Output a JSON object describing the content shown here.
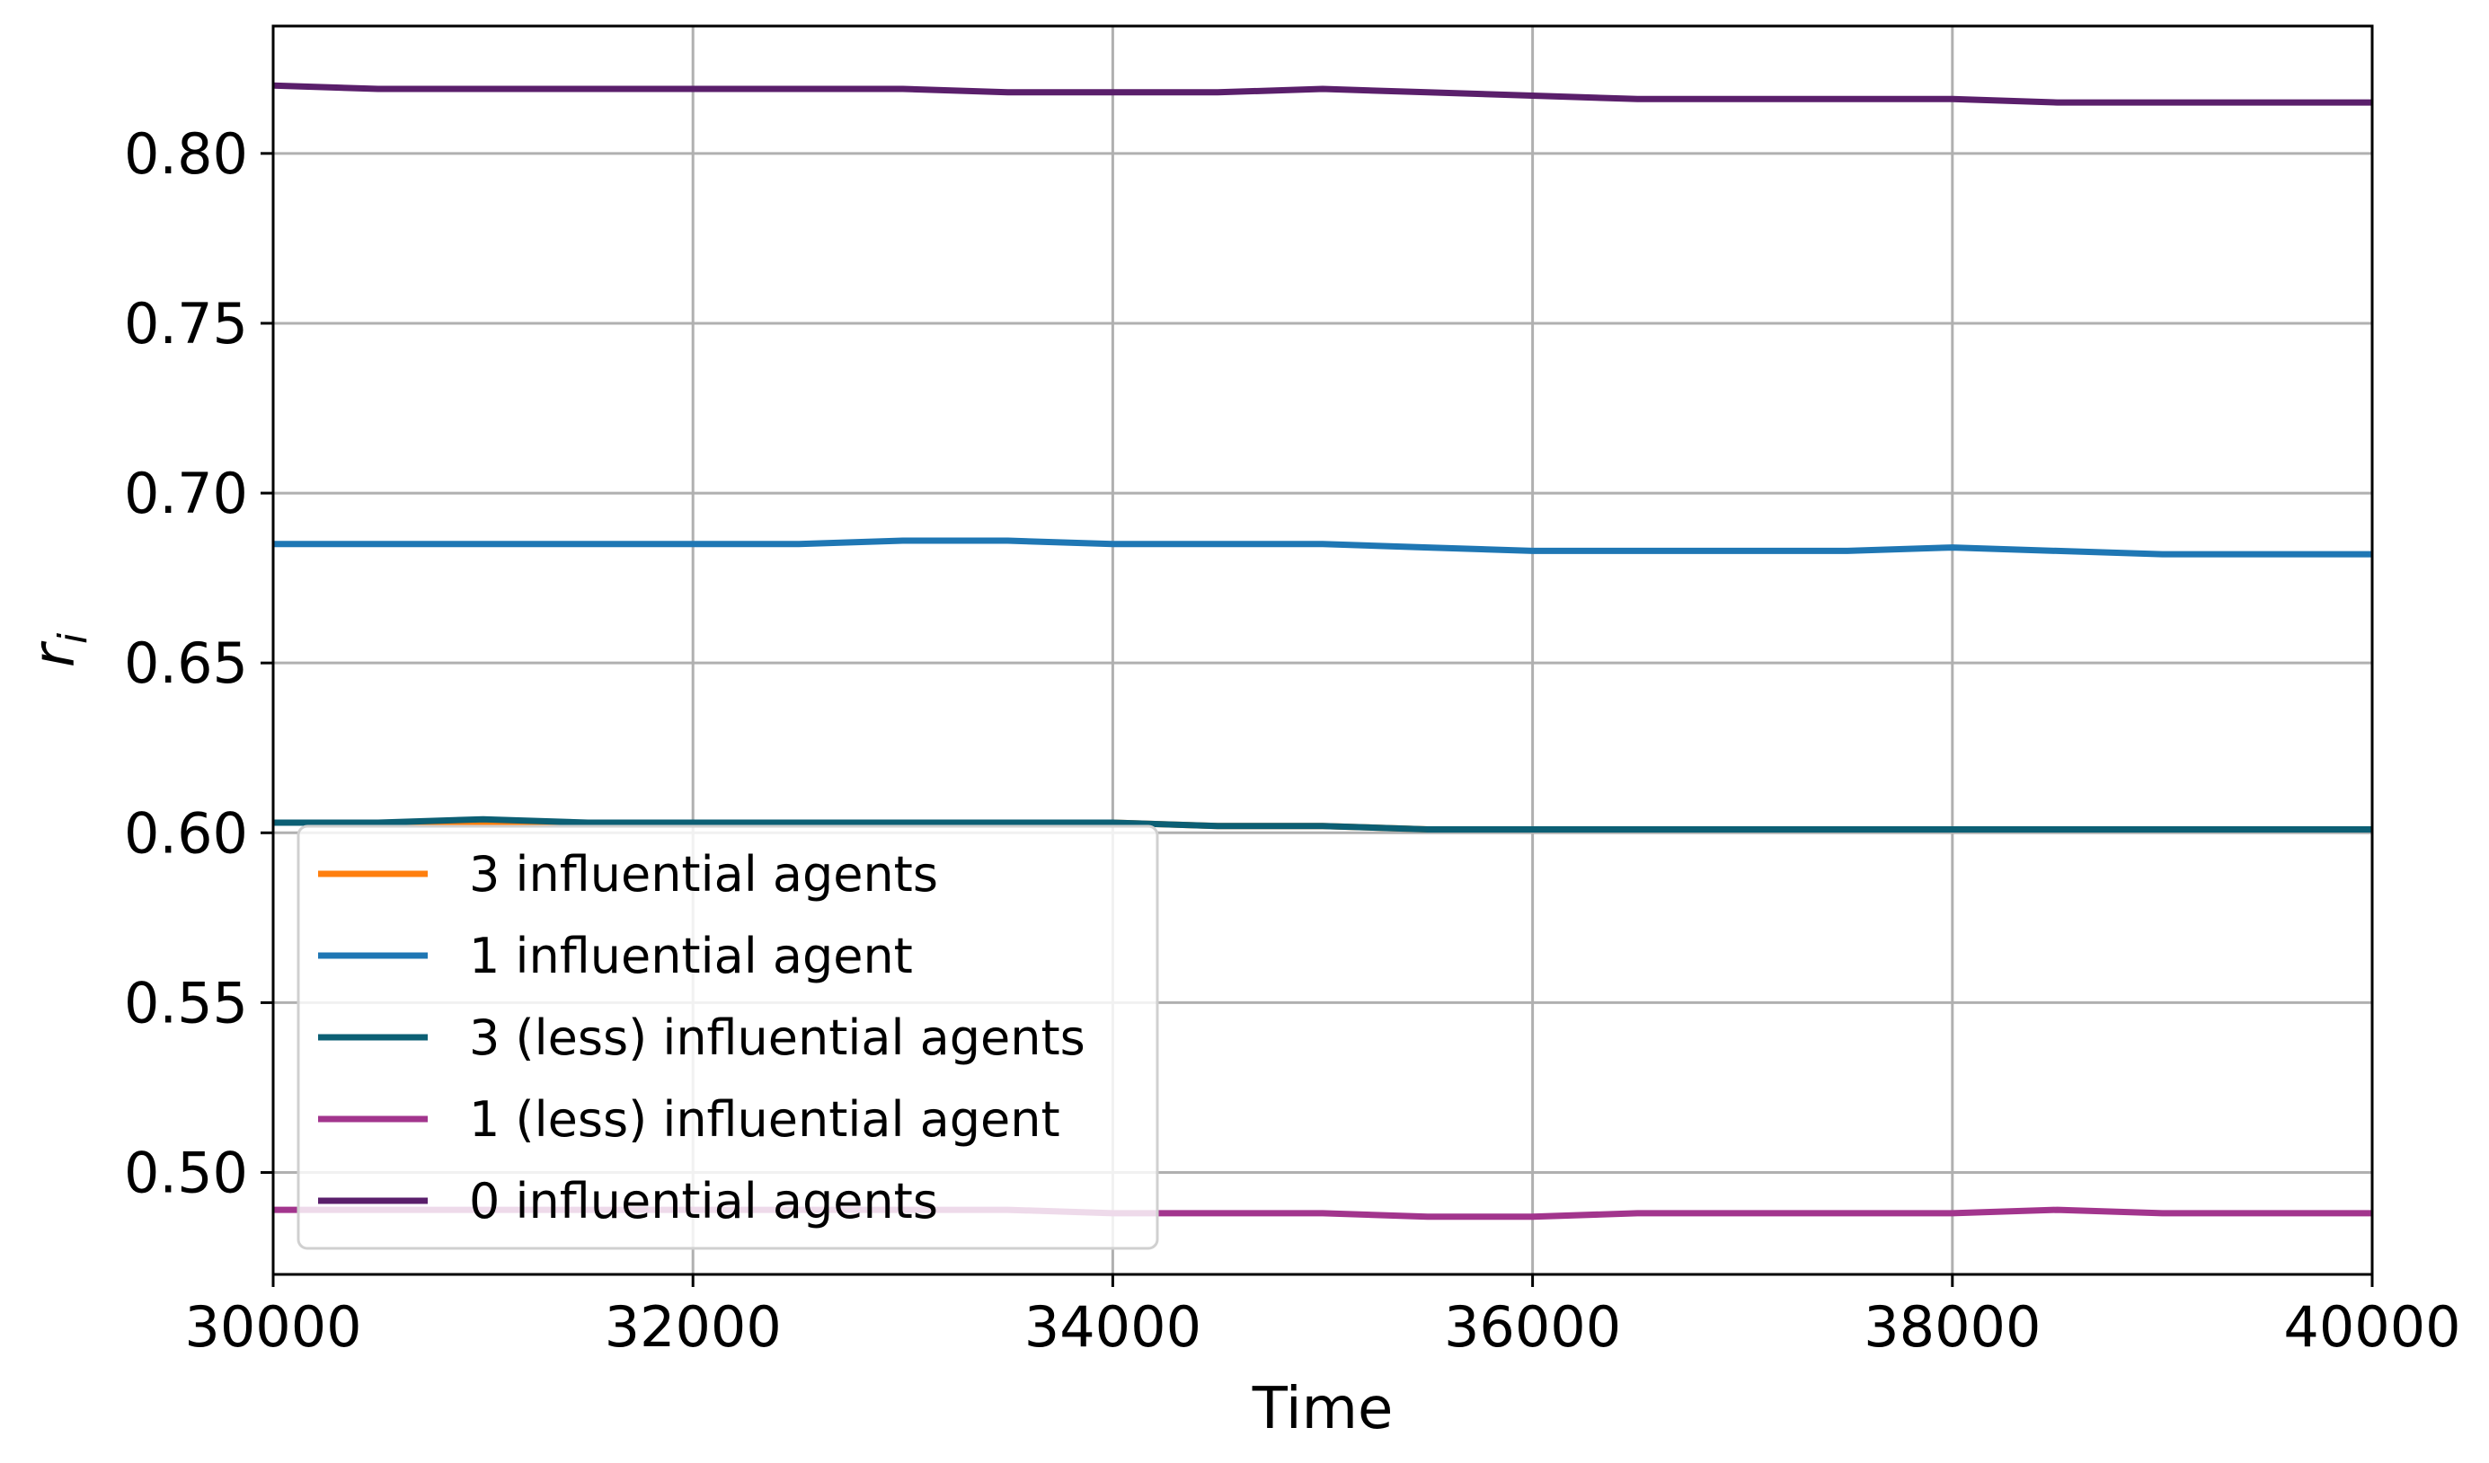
{
  "chart_data": {
    "type": "line",
    "title": "",
    "xlabel": "Time",
    "ylabel": "r_i",
    "xlim": [
      30000,
      40000
    ],
    "ylim": [
      0.47,
      0.8375
    ],
    "xticks": [
      30000,
      32000,
      34000,
      36000,
      38000,
      40000
    ],
    "yticks": [
      0.5,
      0.55,
      0.6,
      0.65,
      0.7,
      0.75,
      0.8
    ],
    "xtick_labels": [
      "30000",
      "32000",
      "34000",
      "36000",
      "38000",
      "40000"
    ],
    "ytick_labels": [
      "0.50",
      "0.55",
      "0.60",
      "0.65",
      "0.70",
      "0.75",
      "0.80"
    ],
    "grid": true,
    "legend_position": "lower-left",
    "x": [
      30000,
      30500,
      31000,
      31500,
      32000,
      32500,
      33000,
      33500,
      34000,
      34500,
      35000,
      35500,
      36000,
      36500,
      37000,
      37500,
      38000,
      38500,
      39000,
      39500,
      40000
    ],
    "series": [
      {
        "name": "3 influential agents",
        "color": "#ff7f0e",
        "values": [
          0.603,
          0.603,
          0.603,
          0.603,
          0.603,
          0.603,
          0.603,
          0.603,
          0.603,
          0.602,
          0.602,
          0.601,
          0.601,
          0.601,
          0.601,
          0.601,
          0.601,
          0.601,
          0.601,
          0.601,
          0.601
        ]
      },
      {
        "name": "1 influential agent",
        "color": "#1f77b4",
        "values": [
          0.685,
          0.685,
          0.685,
          0.685,
          0.685,
          0.685,
          0.686,
          0.686,
          0.685,
          0.685,
          0.685,
          0.684,
          0.683,
          0.683,
          0.683,
          0.683,
          0.684,
          0.683,
          0.682,
          0.682,
          0.682
        ]
      },
      {
        "name": "3 (less) influential agents",
        "color": "#0c5f74",
        "values": [
          0.603,
          0.603,
          0.604,
          0.603,
          0.603,
          0.603,
          0.603,
          0.603,
          0.603,
          0.602,
          0.602,
          0.601,
          0.601,
          0.601,
          0.601,
          0.601,
          0.601,
          0.601,
          0.601,
          0.601,
          0.601
        ]
      },
      {
        "name": "1 (less) influential agent",
        "color": "#a2358d",
        "values": [
          0.489,
          0.489,
          0.489,
          0.489,
          0.489,
          0.489,
          0.489,
          0.489,
          0.488,
          0.488,
          0.488,
          0.487,
          0.487,
          0.488,
          0.488,
          0.488,
          0.488,
          0.489,
          0.488,
          0.488,
          0.488
        ]
      },
      {
        "name": "0 influential agents",
        "color": "#5a1f6b",
        "values": [
          0.82,
          0.819,
          0.819,
          0.819,
          0.819,
          0.819,
          0.819,
          0.818,
          0.818,
          0.818,
          0.819,
          0.818,
          0.817,
          0.816,
          0.816,
          0.816,
          0.816,
          0.815,
          0.815,
          0.815,
          0.815
        ]
      }
    ]
  }
}
